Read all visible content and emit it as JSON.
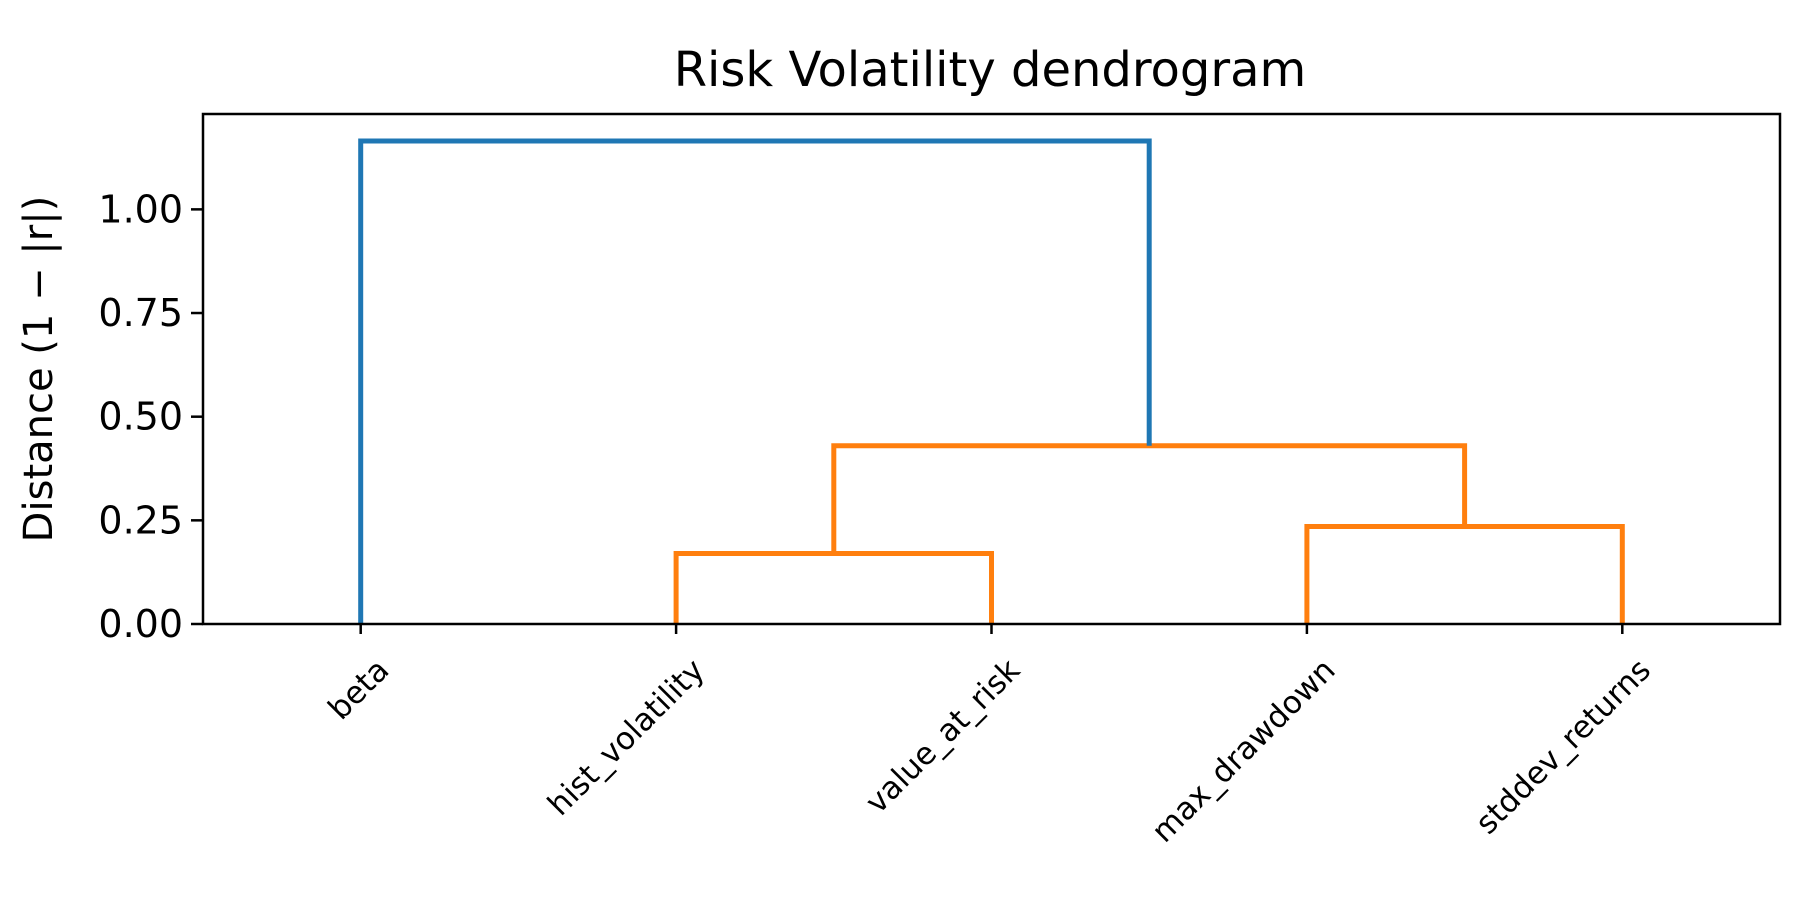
{
  "chart_data": {
    "type": "dendrogram",
    "title": "Risk Volatility dendrogram",
    "xlabel": "",
    "ylabel": "Distance (1 − |r|)",
    "ylim": [
      0,
      1.23
    ],
    "yticks": [
      "0.00",
      "0.25",
      "0.50",
      "0.75",
      "1.00"
    ],
    "ytick_values": [
      0,
      0.25,
      0.5,
      0.75,
      1.0
    ],
    "leaves": [
      "beta",
      "hist_volatility",
      "value_at_risk",
      "max_drawdown",
      "stddev_returns"
    ],
    "merges": [
      {
        "left": "hist_volatility",
        "right": "value_at_risk",
        "distance": 0.17,
        "color": "#ff7f0e"
      },
      {
        "left": "max_drawdown",
        "right": "stddev_returns",
        "distance": 0.235,
        "color": "#ff7f0e"
      },
      {
        "left": "cluster(hist_volatility,value_at_risk)",
        "right": "cluster(max_drawdown,stddev_returns)",
        "distance": 0.43,
        "color": "#ff7f0e"
      },
      {
        "left": "beta",
        "right": "cluster(hist_volatility,value_at_risk,max_drawdown,stddev_returns)",
        "distance": 1.165,
        "color": "#1f77b4"
      }
    ],
    "colors": {
      "above_threshold": "#1f77b4",
      "cluster_1": "#ff7f0e"
    },
    "grid": false,
    "legend": "none"
  }
}
